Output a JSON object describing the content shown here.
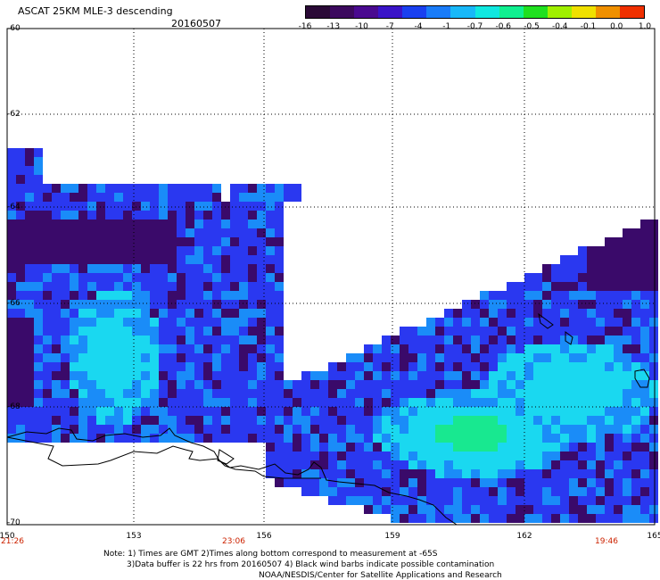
{
  "title": "ASCAT 25KM MLE-3 descending",
  "date": "20160507",
  "colorbar": {
    "labels": [
      "-16",
      "-13",
      "-10",
      "-7",
      "-4",
      "-1",
      "-0.7",
      "-0.6",
      "-0.5",
      "-0.4",
      "-0.1",
      "0.0",
      "1.0"
    ],
    "colors": [
      "#2a0a36",
      "#3c0a5e",
      "#4a0a90",
      "#3a14c8",
      "#1a40f0",
      "#1a7cf8",
      "#18b8f8",
      "#10e8e0",
      "#10f090",
      "#20e020",
      "#a0f000",
      "#f0e000",
      "#f09000",
      "#f03000"
    ]
  },
  "axes": {
    "lat_labels": [
      "-60",
      "-62",
      "-64",
      "-66",
      "-68",
      "-70"
    ],
    "lon_labels": [
      "150",
      "153",
      "156",
      "159",
      "162",
      "165"
    ]
  },
  "times": [
    "21:26",
    "23:06",
    "19:46"
  ],
  "notes": [
    "Note: 1) Times are GMT 2)Times along bottom correspond to measurement at -65S",
    "3)Data buffer is 22 hrs from 20160507 4) Black wind barbs indicate possible contamination",
    "NOAA/NESDIS/Center for Satellite Applications and Research"
  ],
  "legend_colors": {
    "deep": "#3a0a6a",
    "blue": "#2a38f0",
    "lightblue": "#1a8cf8",
    "cyan": "#1ad8f0",
    "green": "#18e890"
  }
}
